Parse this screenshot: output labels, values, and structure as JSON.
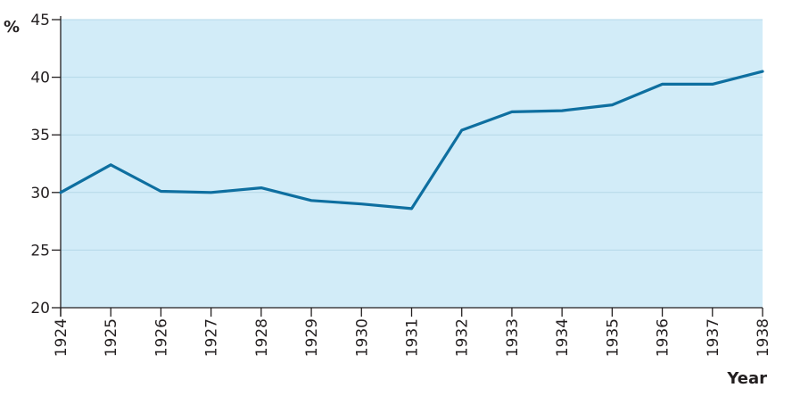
{
  "chart_data": {
    "type": "line",
    "title": "",
    "xlabel": "Year",
    "ylabel": "%",
    "x": [
      "1924",
      "1925",
      "1926",
      "1927",
      "1928",
      "1929",
      "1930",
      "1931",
      "1932",
      "1933",
      "1934",
      "1935",
      "1936",
      "1937",
      "1938"
    ],
    "series": [
      {
        "values": [
          30.0,
          32.4,
          30.1,
          30.0,
          30.4,
          29.3,
          29.0,
          28.6,
          35.4,
          37.0,
          37.1,
          37.6,
          39.4,
          39.4,
          40.5
        ]
      }
    ],
    "ylim": [
      20,
      45
    ],
    "yticks": [
      "20",
      "25",
      "30",
      "35",
      "40",
      "45"
    ],
    "grid": true,
    "colors": {
      "plot_background": "#d2ecf8",
      "line": "#0e6fa0",
      "grid": "#b5d8e8",
      "axis": "#231f20"
    }
  }
}
